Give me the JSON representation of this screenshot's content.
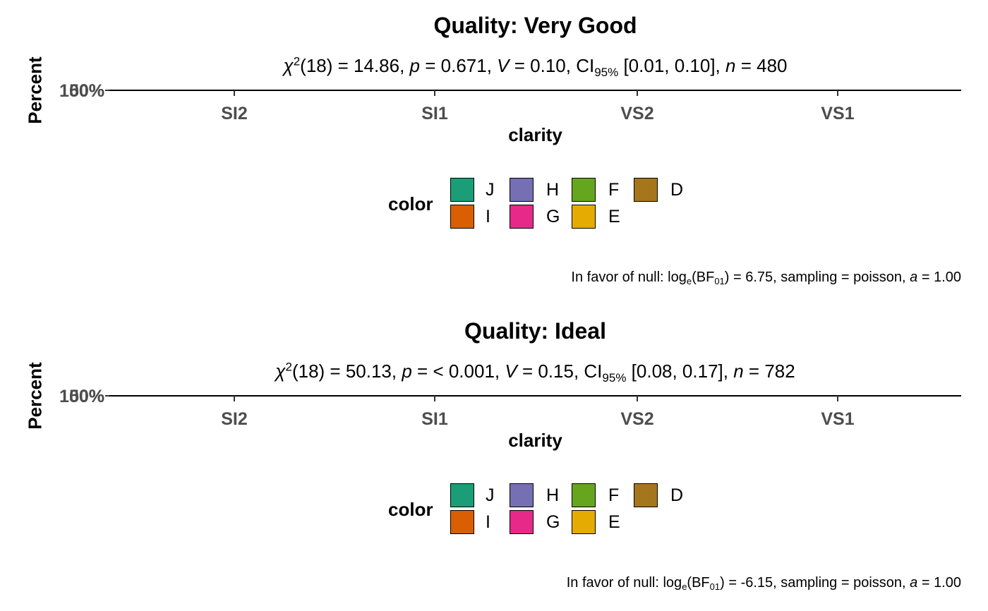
{
  "chart_data": [
    {
      "type": "bar",
      "title": "Quality: Very Good",
      "subtitle": {
        "chi_symbol": "χ",
        "chi_sup": "2",
        "df_part": "(18) = 14.86, ",
        "p_sym": "p",
        "p_part": " = 0.671, ",
        "v_sym": "V",
        "v_part": " = 0.10, CI",
        "ci_sub": "95%",
        "ci_part": " [0.01, 0.10], ",
        "n_sym": "n",
        "n_part": " = 480"
      },
      "ylabel": "Percent",
      "ytick_labels": [
        "100%",
        "50%",
        "0%"
      ],
      "xlabel": "clarity",
      "categories": [
        "SI2",
        "SI1",
        "VS2",
        "VS1"
      ],
      "legend": {
        "title": "color",
        "entries": [
          {
            "label": "J",
            "color": "#1B9E77"
          },
          {
            "label": "I",
            "color": "#D95F02"
          },
          {
            "label": "H",
            "color": "#7570B3"
          },
          {
            "label": "G",
            "color": "#E7298A"
          },
          {
            "label": "F",
            "color": "#66A61E"
          },
          {
            "label": "E",
            "color": "#E6AB02"
          },
          {
            "label": "D",
            "color": "#A6761D"
          }
        ]
      },
      "caption": {
        "prefix": "In favor of null: log",
        "e_sub": "e",
        "bf": "(BF",
        "bf_sub": "01",
        "rest1": ") = 6.75, sampling = poisson, ",
        "a_sym": "a",
        "rest2": " = 1.00"
      },
      "grid": false
    },
    {
      "type": "bar",
      "title": "Quality: Ideal",
      "subtitle": {
        "chi_symbol": "χ",
        "chi_sup": "2",
        "df_part": "(18) = 50.13, ",
        "p_sym": "p",
        "p_part": " = < 0.001, ",
        "v_sym": "V",
        "v_part": " = 0.15, CI",
        "ci_sub": "95%",
        "ci_part": " [0.08, 0.17], ",
        "n_sym": "n",
        "n_part": " = 782"
      },
      "ylabel": "Percent",
      "ytick_labels": [
        "100%",
        "50%",
        "0%"
      ],
      "xlabel": "clarity",
      "categories": [
        "SI2",
        "SI1",
        "VS2",
        "VS1"
      ],
      "legend": {
        "title": "color",
        "entries": [
          {
            "label": "J",
            "color": "#1B9E77"
          },
          {
            "label": "I",
            "color": "#D95F02"
          },
          {
            "label": "H",
            "color": "#7570B3"
          },
          {
            "label": "G",
            "color": "#E7298A"
          },
          {
            "label": "F",
            "color": "#66A61E"
          },
          {
            "label": "E",
            "color": "#E6AB02"
          },
          {
            "label": "D",
            "color": "#A6761D"
          }
        ]
      },
      "caption": {
        "prefix": "In favor of null: log",
        "e_sub": "e",
        "bf": "(BF",
        "bf_sub": "01",
        "rest1": ") = -6.15, sampling = poisson, ",
        "a_sym": "a",
        "rest2": " = 1.00"
      },
      "grid": false
    }
  ]
}
